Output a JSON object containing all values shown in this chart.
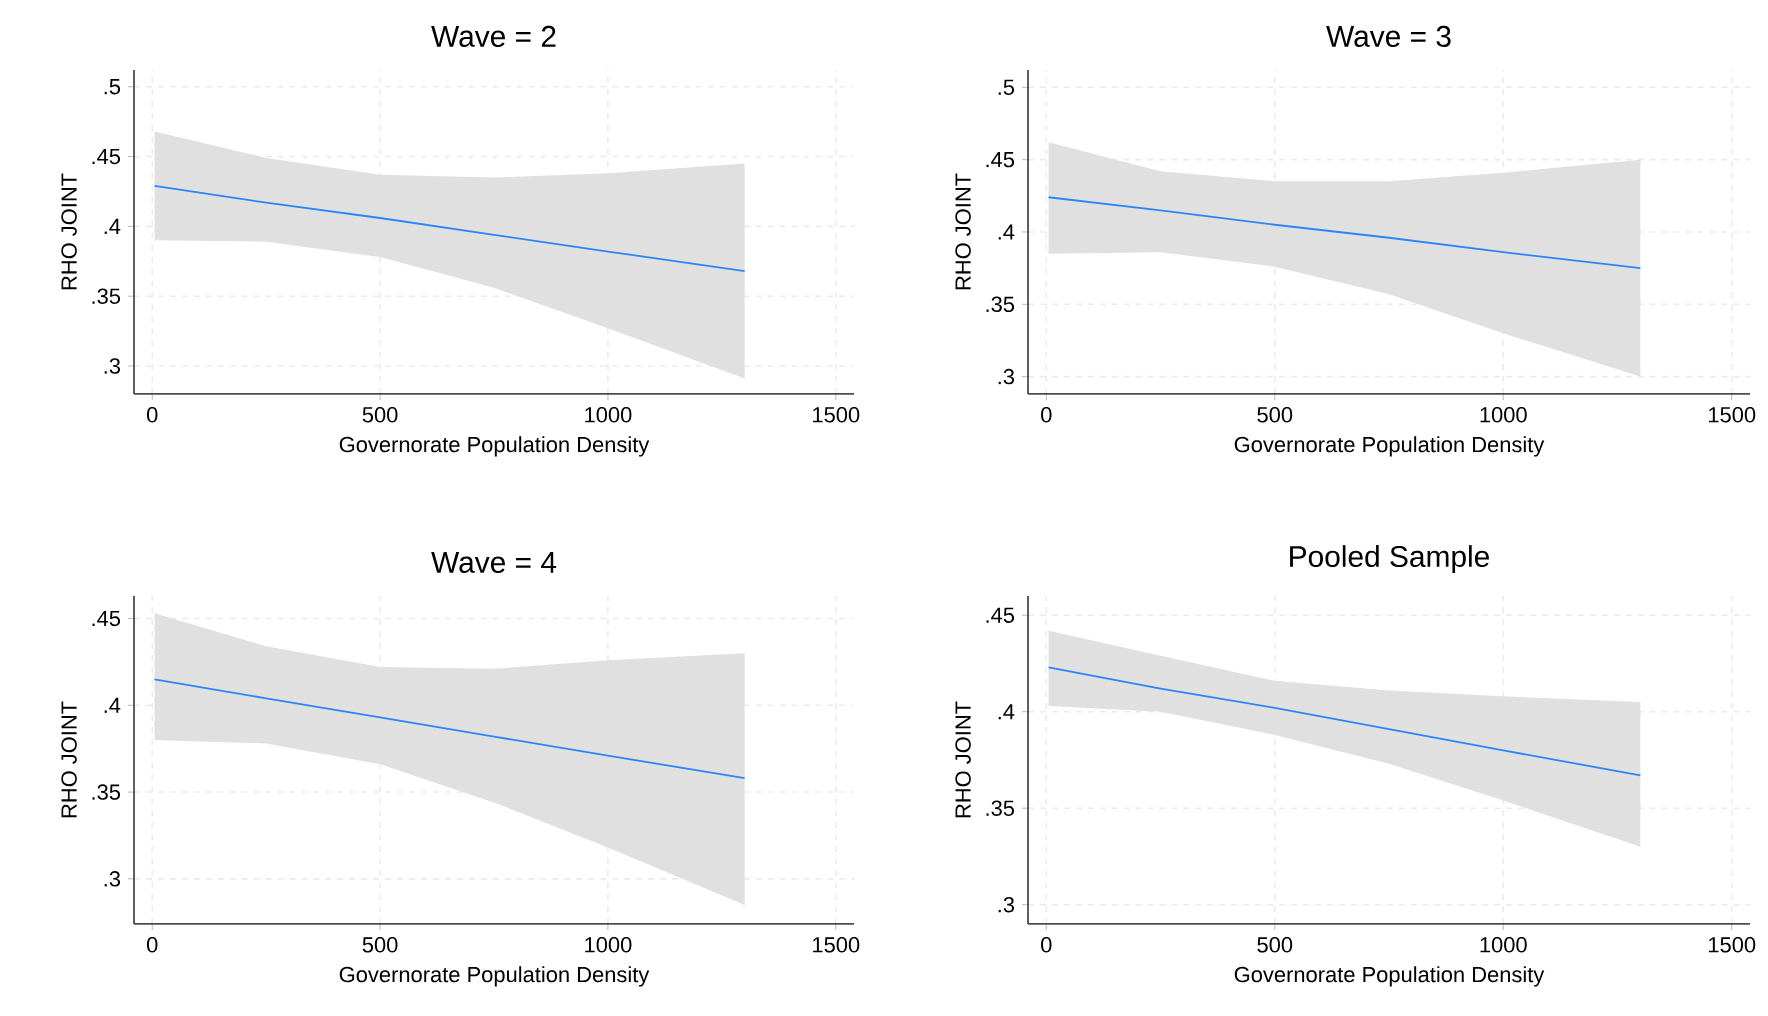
{
  "chart_data": [
    {
      "type": "line",
      "title": "Wave = 2",
      "xlabel": "Governorate Population Density",
      "ylabel": "RHO JOINT",
      "xlim": [
        -40,
        1540
      ],
      "ylim": [
        0.28,
        0.512
      ],
      "xticks": [
        0,
        500,
        1000,
        1500
      ],
      "yticks": [
        {
          "value": 0.3,
          "label": ".3"
        },
        {
          "value": 0.35,
          "label": ".35"
        },
        {
          "value": 0.4,
          "label": ".4"
        },
        {
          "value": 0.45,
          "label": ".45"
        },
        {
          "value": 0.5,
          "label": ".5"
        }
      ],
      "grid": true,
      "x": [
        5,
        250,
        500,
        750,
        1000,
        1300
      ],
      "series": [
        {
          "color": "#2a86f7",
          "values": [
            0.429,
            0.417,
            0.406,
            0.394,
            0.382,
            0.368
          ],
          "lower": [
            0.39,
            0.389,
            0.378,
            0.356,
            0.327,
            0.291
          ],
          "upper": [
            0.468,
            0.449,
            0.437,
            0.435,
            0.438,
            0.445
          ]
        }
      ]
    },
    {
      "type": "line",
      "title": "Wave = 3",
      "xlabel": "Governorate Population Density",
      "ylabel": "RHO JOINT",
      "xlim": [
        -40,
        1540
      ],
      "ylim": [
        0.288,
        0.512
      ],
      "xticks": [
        0,
        500,
        1000,
        1500
      ],
      "yticks": [
        {
          "value": 0.3,
          "label": ".3"
        },
        {
          "value": 0.35,
          "label": ".35"
        },
        {
          "value": 0.4,
          "label": ".4"
        },
        {
          "value": 0.45,
          "label": ".45"
        },
        {
          "value": 0.5,
          "label": ".5"
        }
      ],
      "grid": true,
      "x": [
        5,
        250,
        500,
        750,
        1000,
        1300
      ],
      "series": [
        {
          "color": "#2a86f7",
          "values": [
            0.424,
            0.415,
            0.405,
            0.396,
            0.386,
            0.375
          ],
          "lower": [
            0.385,
            0.386,
            0.376,
            0.357,
            0.33,
            0.3
          ],
          "upper": [
            0.462,
            0.442,
            0.435,
            0.435,
            0.441,
            0.45
          ]
        }
      ]
    },
    {
      "type": "line",
      "title": "Wave = 4",
      "xlabel": "Governorate Population Density",
      "ylabel": "RHO JOINT",
      "xlim": [
        -40,
        1540
      ],
      "ylim": [
        0.274,
        0.463
      ],
      "xticks": [
        0,
        500,
        1000,
        1500
      ],
      "yticks": [
        {
          "value": 0.3,
          "label": ".3"
        },
        {
          "value": 0.35,
          "label": ".35"
        },
        {
          "value": 0.4,
          "label": ".4"
        },
        {
          "value": 0.45,
          "label": ".45"
        }
      ],
      "grid": true,
      "x": [
        5,
        250,
        500,
        750,
        1000,
        1300
      ],
      "series": [
        {
          "color": "#2a86f7",
          "values": [
            0.415,
            0.404,
            0.393,
            0.382,
            0.371,
            0.358
          ],
          "lower": [
            0.38,
            0.378,
            0.366,
            0.344,
            0.318,
            0.285
          ],
          "upper": [
            0.453,
            0.434,
            0.422,
            0.421,
            0.426,
            0.43
          ]
        }
      ]
    },
    {
      "type": "line",
      "title": "Pooled Sample",
      "xlabel": "Governorate Population Density",
      "ylabel": "RHO JOINT",
      "xlim": [
        -40,
        1540
      ],
      "ylim": [
        0.29,
        0.46
      ],
      "xticks": [
        0,
        500,
        1000,
        1500
      ],
      "yticks": [
        {
          "value": 0.3,
          "label": ".3"
        },
        {
          "value": 0.35,
          "label": ".35"
        },
        {
          "value": 0.4,
          "label": ".4"
        },
        {
          "value": 0.45,
          "label": ".45"
        }
      ],
      "grid": true,
      "x": [
        5,
        250,
        500,
        750,
        1000,
        1300
      ],
      "series": [
        {
          "color": "#2a86f7",
          "values": [
            0.423,
            0.412,
            0.402,
            0.391,
            0.38,
            0.367
          ],
          "lower": [
            0.403,
            0.4,
            0.388,
            0.373,
            0.354,
            0.33
          ],
          "upper": [
            0.442,
            0.429,
            0.416,
            0.411,
            0.408,
            0.405
          ]
        }
      ]
    }
  ]
}
